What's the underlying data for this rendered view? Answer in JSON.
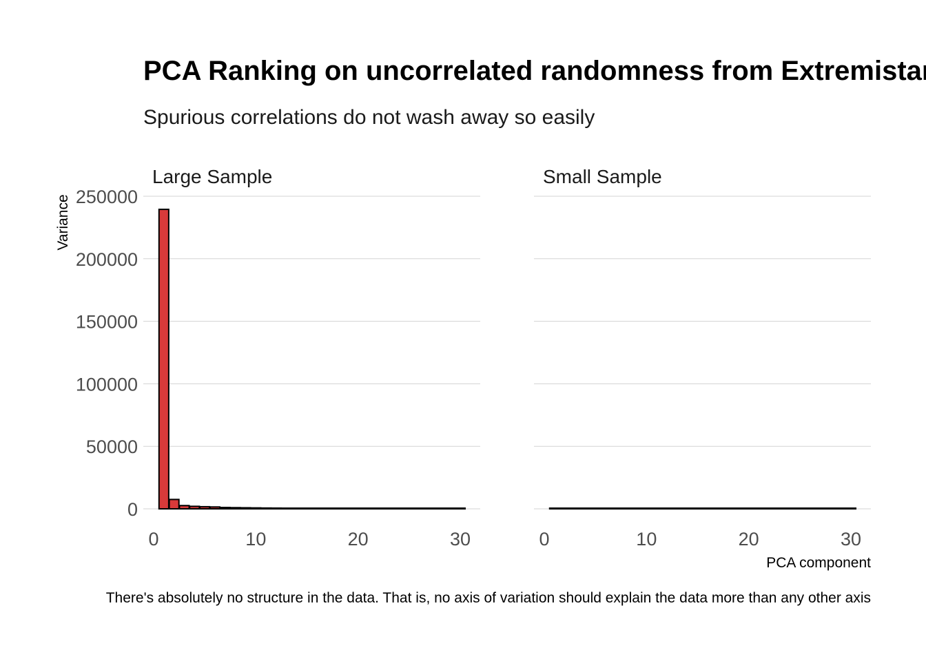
{
  "title": "PCA Ranking on uncorrelated randomness from Extremistan",
  "subtitle": "Spurious correlations do not wash away so easily",
  "caption": "There's absolutely no structure in the data. That is, no axis of variation should explain the data more than any other axis",
  "chart_data": {
    "type": "bar",
    "xlabel": "PCA component",
    "ylabel": "Variance",
    "xlim": [
      0,
      30
    ],
    "ylim": [
      0,
      250000
    ],
    "x_ticks": [
      "0",
      "10",
      "20",
      "30"
    ],
    "y_ticks": [
      "0",
      "50000",
      "100000",
      "150000",
      "200000",
      "250000"
    ],
    "grid": true,
    "colors": {
      "bar_fill": "#d83a3a",
      "bar_stroke": "#000000",
      "grid": "#d3d3d3"
    },
    "categories": [
      1,
      2,
      3,
      4,
      5,
      6,
      7,
      8,
      9,
      10,
      11,
      12,
      13,
      14,
      15,
      16,
      17,
      18,
      19,
      20,
      21,
      22,
      23,
      24,
      25,
      26,
      27,
      28,
      29,
      30
    ],
    "panels": [
      {
        "name": "Large Sample",
        "values": [
          239500,
          7500,
          2600,
          2000,
          1700,
          1500,
          1100,
          950,
          850,
          750,
          650,
          600,
          550,
          500,
          460,
          420,
          390,
          360,
          330,
          300,
          280,
          260,
          240,
          220,
          200,
          180,
          160,
          140,
          120,
          100
        ]
      },
      {
        "name": "Small Sample",
        "values": [
          300,
          280,
          260,
          240,
          230,
          220,
          210,
          200,
          190,
          180,
          170,
          160,
          150,
          140,
          130,
          120,
          110,
          100,
          95,
          90,
          85,
          80,
          75,
          70,
          65,
          60,
          55,
          50,
          45,
          40
        ]
      }
    ]
  }
}
